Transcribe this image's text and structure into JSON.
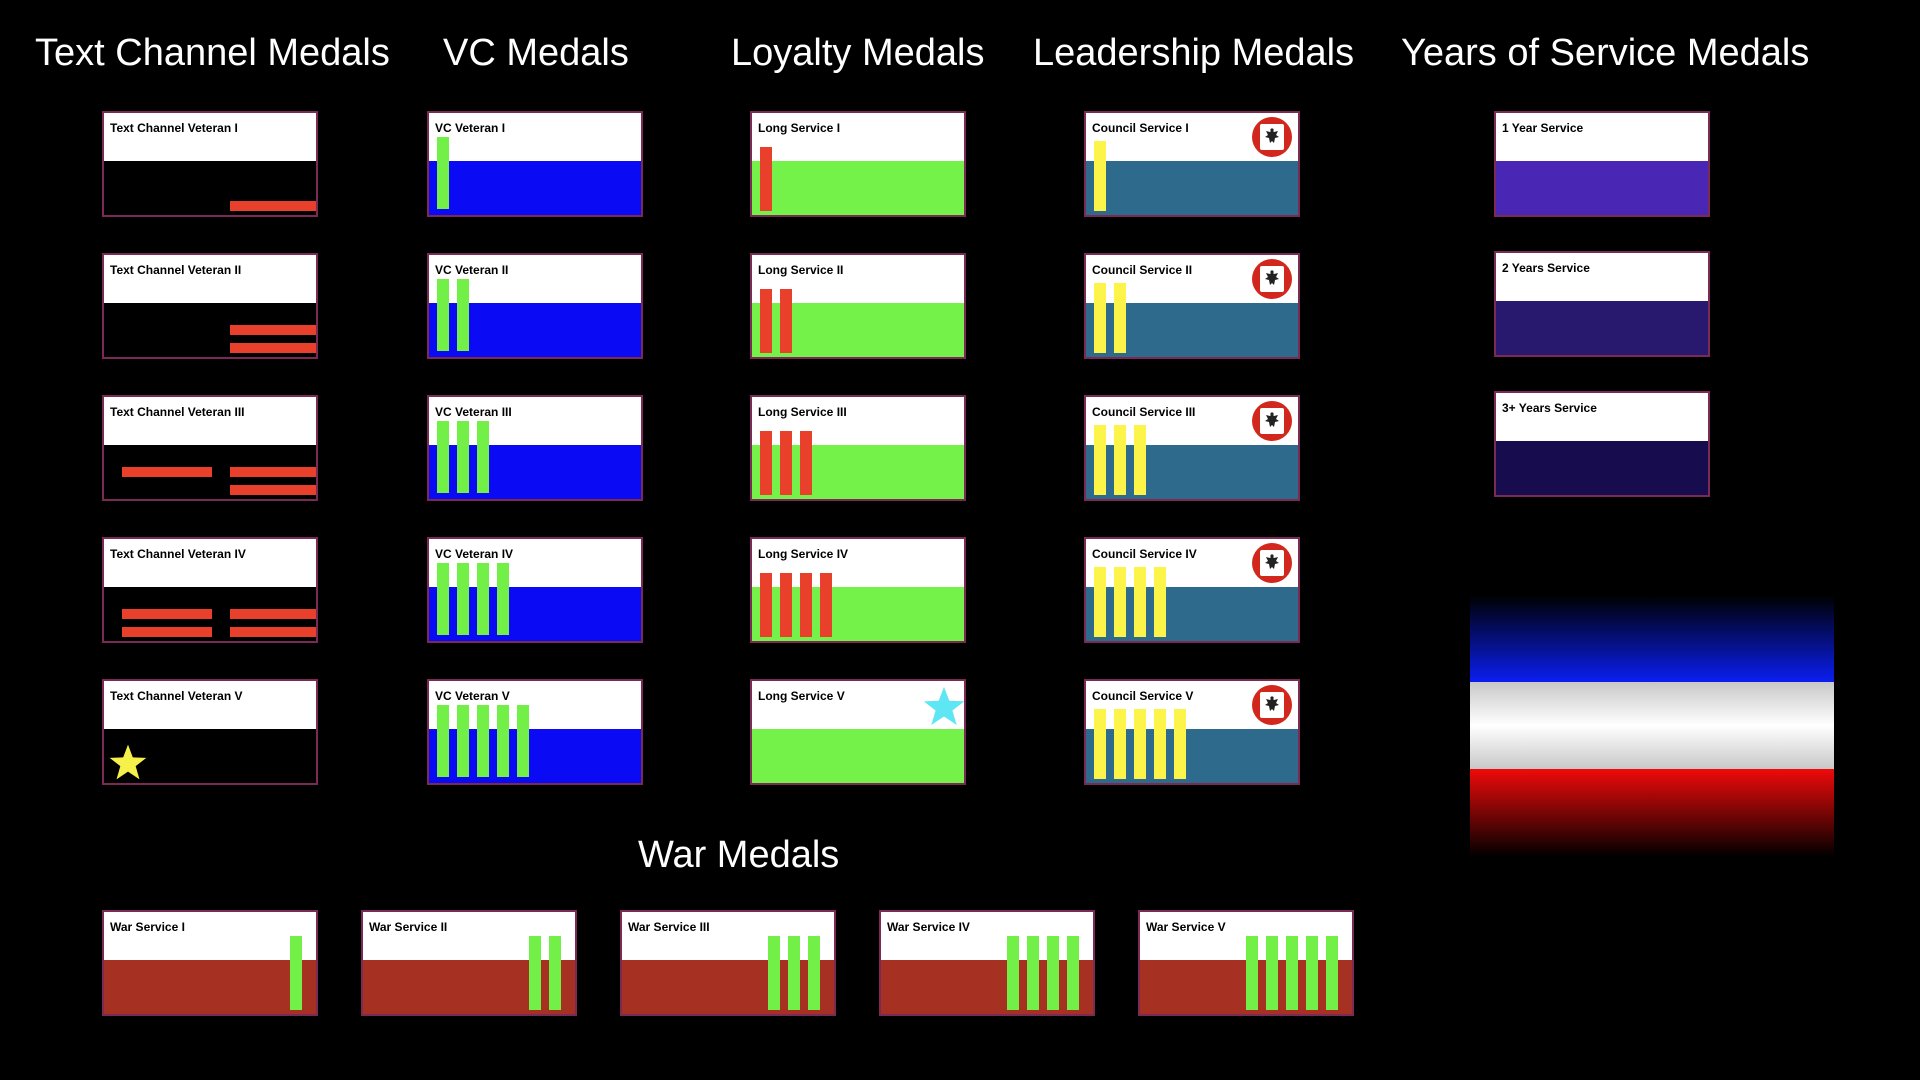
{
  "headings": {
    "text_channel": "Text Channel Medals",
    "vc": "VC Medals",
    "loyalty": "Loyalty Medals",
    "leadership": "Leadership Medals",
    "years": "Years of Service Medals",
    "war": "War Medals"
  },
  "colors": {
    "text_channel_bg": "#000000",
    "text_channel_bar": "#e8402a",
    "vc_bg": "#0a0af5",
    "vc_bar": "#73f048",
    "loyalty_bg": "#74f24a",
    "loyalty_bar": "#e8402a",
    "leadership_bg": "#2e6a8c",
    "leadership_bar": "#fdf44a",
    "war_bg": "#a63022",
    "war_bar": "#73f048",
    "years_1": "#4a26b4",
    "years_2": "#28186e",
    "years_3": "#170d4e",
    "star_yellow": "#f6f04b",
    "star_cyan": "#5ee6f5",
    "emblem_red": "#d1271c",
    "flag_blue": "#0a1ef0",
    "flag_white": "#ffffff",
    "flag_red": "#f00a0a"
  },
  "icons": {
    "emblem": "eagle-crest-icon",
    "star": "star-icon"
  },
  "medals": {
    "text_channel": [
      "Text Channel Veteran I",
      "Text Channel Veteran II",
      "Text Channel Veteran III",
      "Text Channel Veteran IV",
      "Text Channel Veteran V"
    ],
    "vc": [
      "VC Veteran I",
      "VC Veteran II",
      "VC Veteran III",
      "VC Veteran IV",
      "VC Veteran V"
    ],
    "loyalty": [
      "Long Service I",
      "Long Service II",
      "Long Service III",
      "Long Service IV",
      "Long Service V"
    ],
    "leadership": [
      "Council Service I",
      "Council Service II",
      "Council Service III",
      "Council Service IV",
      "Council Service V"
    ],
    "years": [
      "1 Year Service",
      "2 Years Service",
      "3+ Years Service"
    ],
    "war": [
      "War Service I",
      "War Service II",
      "War Service III",
      "War Service IV",
      "War Service V"
    ]
  }
}
